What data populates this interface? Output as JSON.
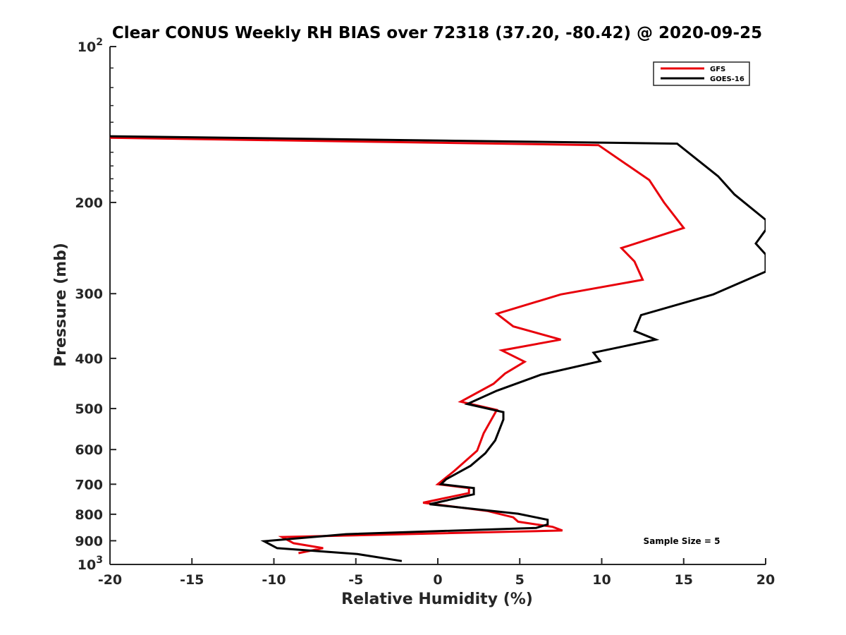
{
  "chart_data": {
    "type": "line",
    "title": "Clear CONUS Weekly RH BIAS over 72318 (37.20, -80.42) @ 2020-09-25",
    "xlabel": "Relative Humidity (%)",
    "ylabel": "Pressure (mb)",
    "xlim": [
      -20,
      20
    ],
    "ylim": [
      100,
      1000
    ],
    "yscale": "log",
    "y_reversed": true,
    "xticks": [
      -20,
      -15,
      -10,
      -5,
      0,
      5,
      10,
      15,
      20
    ],
    "xtick_labels": [
      "-20",
      "-15",
      "-10",
      "-5",
      "0",
      "5",
      "10",
      "15",
      "20"
    ],
    "yticks": [
      100,
      200,
      300,
      400,
      500,
      600,
      700,
      800,
      900,
      1000
    ],
    "ytick_labels": [
      {
        "base": "10",
        "exp": "2"
      },
      {
        "base": "200",
        "exp": ""
      },
      {
        "base": "300",
        "exp": ""
      },
      {
        "base": "400",
        "exp": ""
      },
      {
        "base": "500",
        "exp": ""
      },
      {
        "base": "600",
        "exp": ""
      },
      {
        "base": "700",
        "exp": ""
      },
      {
        "base": "800",
        "exp": ""
      },
      {
        "base": "900",
        "exp": ""
      },
      {
        "base": "10",
        "exp": "3"
      }
    ],
    "grid": false,
    "legend_position": "top-right",
    "annotation": "Sample Size = 5",
    "series": [
      {
        "name": "GFS",
        "color": "#e8000b",
        "points": [
          [
            -20,
            150
          ],
          [
            9.8,
            155
          ],
          [
            12.9,
            181
          ],
          [
            13.8,
            200
          ],
          [
            15.0,
            224
          ],
          [
            11.2,
            245
          ],
          [
            12.0,
            260
          ],
          [
            12.5,
            282
          ],
          [
            7.5,
            301
          ],
          [
            3.6,
            328
          ],
          [
            4.6,
            347
          ],
          [
            7.5,
            368
          ],
          [
            3.9,
            386
          ],
          [
            5.3,
            406
          ],
          [
            4.1,
            428
          ],
          [
            3.4,
            448
          ],
          [
            1.4,
            485
          ],
          [
            3.6,
            503
          ],
          [
            2.8,
            558
          ],
          [
            2.4,
            603
          ],
          [
            1.0,
            660
          ],
          [
            0.0,
            700
          ],
          [
            1.9,
            712
          ],
          [
            1.9,
            728
          ],
          [
            -0.9,
            760
          ],
          [
            3.0,
            788
          ],
          [
            4.6,
            811
          ],
          [
            4.9,
            827
          ],
          [
            7.0,
            846
          ],
          [
            7.6,
            860
          ],
          [
            -9.5,
            885
          ],
          [
            -8.8,
            910
          ],
          [
            -7.0,
            930
          ],
          [
            -8.5,
            951
          ]
        ]
      },
      {
        "name": "GOES-16",
        "color": "#000000",
        "points": [
          [
            -20,
            149
          ],
          [
            14.6,
            154
          ],
          [
            17.1,
            178
          ],
          [
            18.1,
            193
          ],
          [
            20,
            216
          ],
          [
            20,
            226
          ],
          [
            19.4,
            240
          ],
          [
            20,
            252
          ],
          [
            20,
            272
          ],
          [
            16.8,
            301
          ],
          [
            12.4,
            330
          ],
          [
            12.0,
            354
          ],
          [
            13.3,
            368
          ],
          [
            9.5,
            390
          ],
          [
            9.9,
            405
          ],
          [
            6.3,
            430
          ],
          [
            3.6,
            462
          ],
          [
            1.8,
            490
          ],
          [
            4.0,
            508
          ],
          [
            4.0,
            525
          ],
          [
            3.5,
            576
          ],
          [
            2.9,
            610
          ],
          [
            2.0,
            645
          ],
          [
            0.5,
            685
          ],
          [
            0.2,
            700
          ],
          [
            2.2,
            712
          ],
          [
            2.2,
            732
          ],
          [
            -0.5,
            765
          ],
          [
            4.9,
            798
          ],
          [
            6.7,
            820
          ],
          [
            6.7,
            837
          ],
          [
            6.0,
            850
          ],
          [
            -5.6,
            874
          ],
          [
            -10.6,
            902
          ],
          [
            -9.8,
            930
          ],
          [
            -4.9,
            955
          ],
          [
            -2.2,
            985
          ]
        ]
      }
    ]
  }
}
